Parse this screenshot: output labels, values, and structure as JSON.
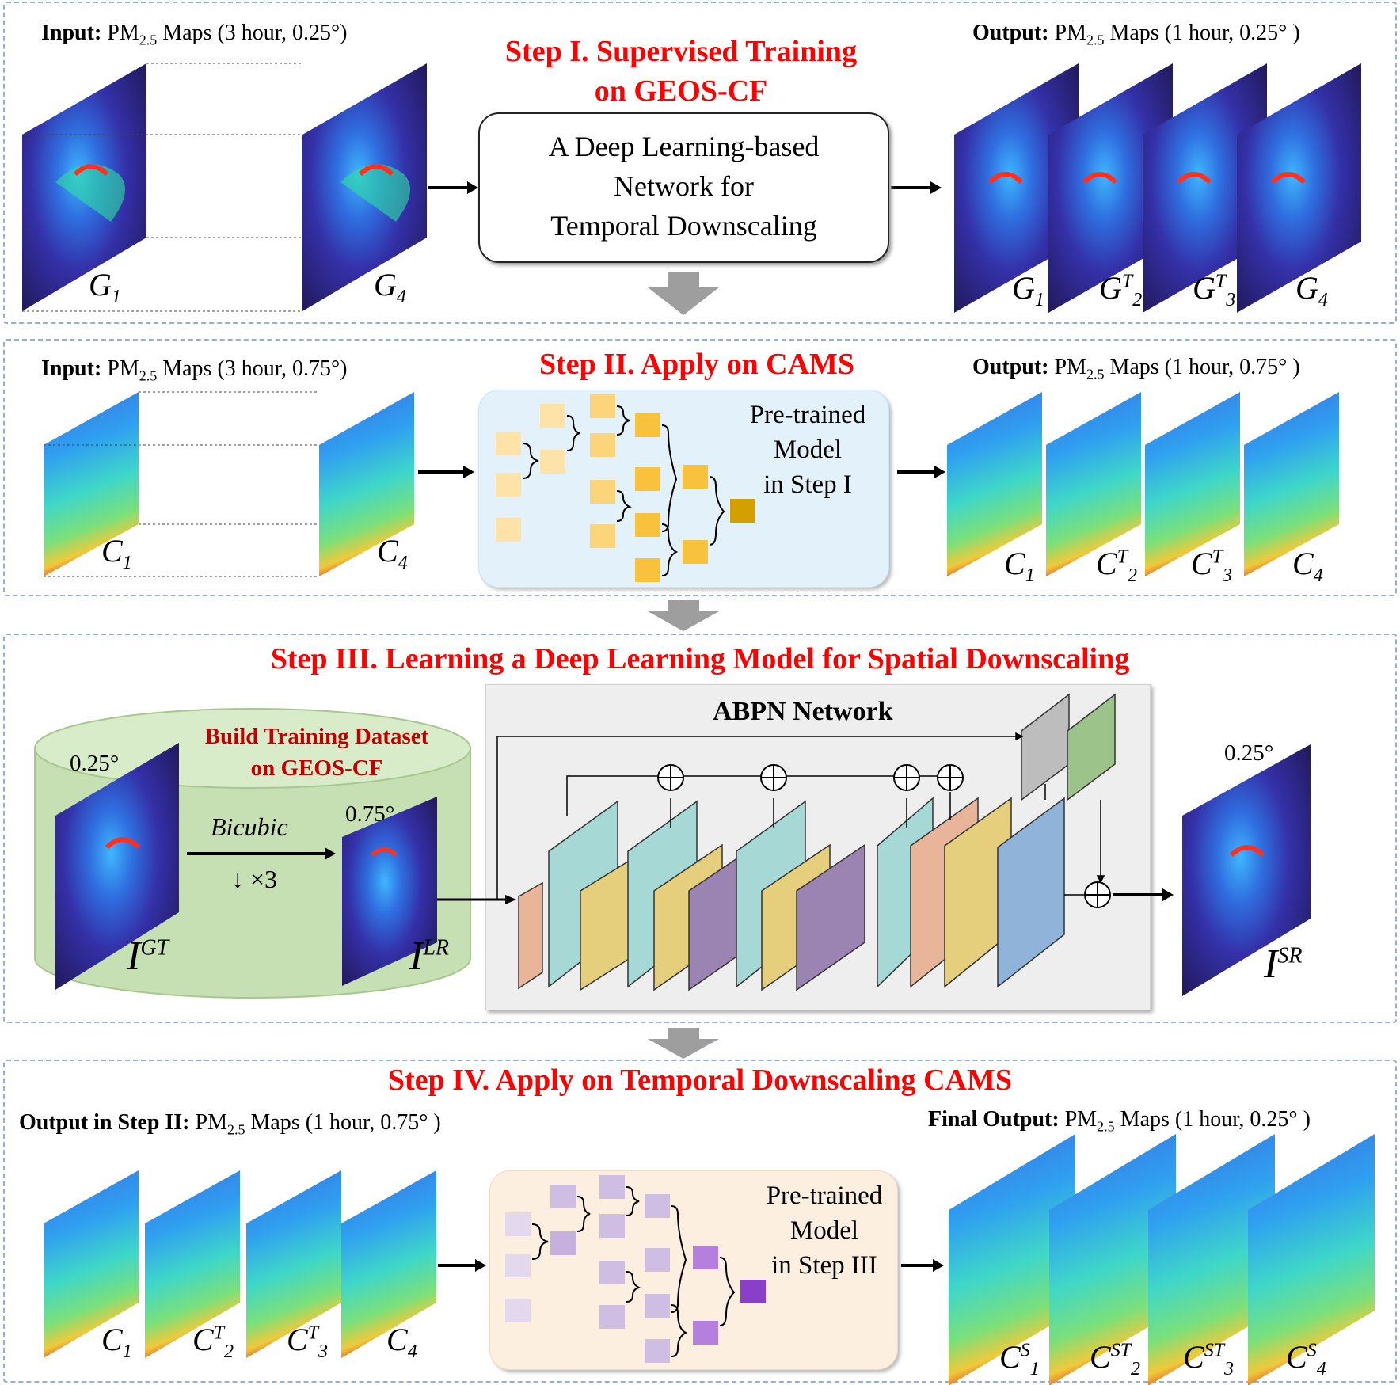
{
  "step1": {
    "title_line1": "Step I. Supervised Training",
    "title_line2": "on GEOS-CF",
    "input_bold": "Input:",
    "input_pre": " PM",
    "input_sub": "2.5",
    "input_post": " Maps (3 hour, 0.25°)",
    "output_bold": "Output:",
    "output_pre": " PM",
    "output_sub": "2.5",
    "output_post": " Maps (1 hour, 0.25° )",
    "box_line1": "A Deep Learning-based",
    "box_line2": "Network for",
    "box_line3": "Temporal Downscaling",
    "in_labels": [
      {
        "base": "G",
        "sub": "1",
        "sup": ""
      },
      {
        "base": "G",
        "sub": "4",
        "sup": ""
      }
    ],
    "out_labels": [
      {
        "base": "G",
        "sub": "1",
        "sup": ""
      },
      {
        "base": "G",
        "sub": "2",
        "sup": "T"
      },
      {
        "base": "G",
        "sub": "3",
        "sup": "T"
      },
      {
        "base": "G",
        "sub": "4",
        "sup": ""
      }
    ]
  },
  "step2": {
    "title": "Step II. Apply on CAMS",
    "input_bold": "Input:",
    "input_pre": " PM",
    "input_sub": "2.5",
    "input_post": " Maps (3 hour, 0.75°)",
    "output_bold": "Output:",
    "output_pre": " PM",
    "output_sub": "2.5",
    "output_post": " Maps (1 hour, 0.75° )",
    "model_line1": "Pre-trained",
    "model_line2": "Model",
    "model_line3": "in Step I",
    "in_labels": [
      {
        "base": "C",
        "sub": "1",
        "sup": ""
      },
      {
        "base": "C",
        "sub": "4",
        "sup": ""
      }
    ],
    "out_labels": [
      {
        "base": "C",
        "sub": "1",
        "sup": ""
      },
      {
        "base": "C",
        "sub": "2",
        "sup": "T"
      },
      {
        "base": "C",
        "sub": "3",
        "sup": "T"
      },
      {
        "base": "C",
        "sub": "4",
        "sup": ""
      }
    ]
  },
  "step3": {
    "title": "Step III. Learning a Deep Learning Model for Spatial Downscaling",
    "dataset_line1": "Build Training Dataset",
    "dataset_line2": "on GEOS-CF",
    "res_gt": "0.25°",
    "res_lr": "0.75°",
    "res_sr": "0.25°",
    "bicubic": "Bicubic",
    "downsample": "↓ ×3",
    "network": "ABPN Network",
    "label_gt": {
      "base": "I",
      "sup": "GT"
    },
    "label_lr": {
      "base": "I",
      "sup": "LR"
    },
    "label_sr": {
      "base": "I",
      "sup": "SR"
    }
  },
  "step4": {
    "title": "Step IV. Apply on Temporal Downscaling CAMS",
    "input_bold": "Output in Step II:",
    "input_pre": " PM",
    "input_sub": "2.5",
    "input_post": " Maps (1 hour, 0.75° )",
    "output_bold": "Final Output:",
    "output_pre": " PM",
    "output_sub": "2.5",
    "output_post": " Maps (1 hour, 0.25° )",
    "model_line1": "Pre-trained",
    "model_line2": "Model",
    "model_line3": "in Step III",
    "in_labels": [
      {
        "base": "C",
        "sub": "1",
        "sup": ""
      },
      {
        "base": "C",
        "sub": "2",
        "sup": "T"
      },
      {
        "base": "C",
        "sub": "3",
        "sup": "T"
      },
      {
        "base": "C",
        "sub": "4",
        "sup": ""
      }
    ],
    "out_labels": [
      {
        "base": "C",
        "sub": "1",
        "sup": "S"
      },
      {
        "base": "C",
        "sub": "2",
        "sup": "ST"
      },
      {
        "base": "C",
        "sub": "3",
        "sup": "ST"
      },
      {
        "base": "C",
        "sub": "4",
        "sup": "S"
      }
    ]
  },
  "colors": {
    "title_red": "#ff0000",
    "panel_border": "#8fb0d9",
    "map_dark": "#2a1f6e",
    "map_mid": "#2f5fd8",
    "map_hot": "#d22a1a",
    "step2_model_bg": "#e3f1fb",
    "step4_model_bg": "#fcefe0",
    "dataset_bg": "#c6e0b4",
    "network_bg": "#eeeeee",
    "orange_node": "#f9c23c",
    "purple_node": "#a35bdb"
  }
}
